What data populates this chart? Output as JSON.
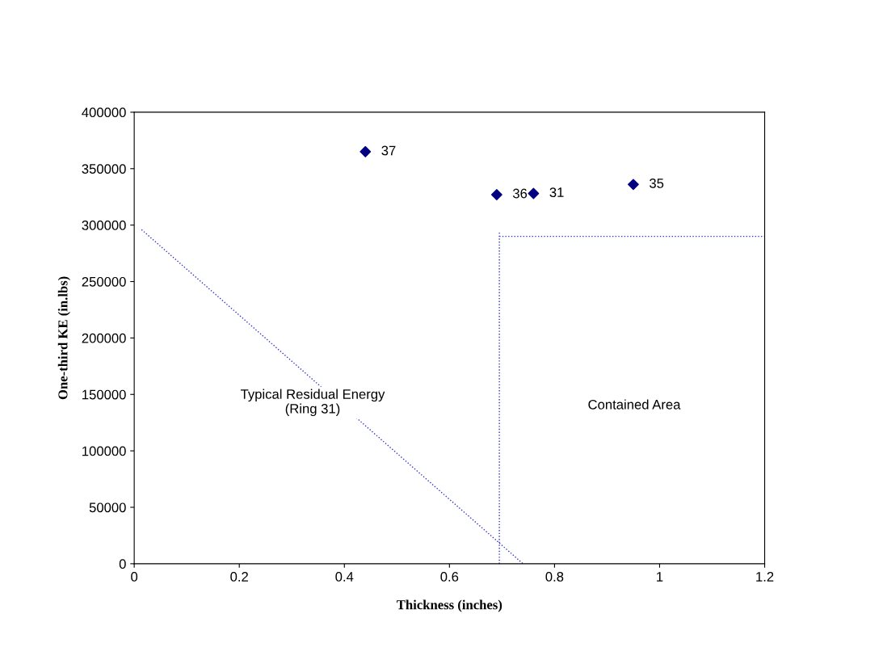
{
  "chart_data": {
    "type": "scatter",
    "xlabel": "Thickness (inches)",
    "ylabel": "One-third KE (in.lbs)",
    "xlim": [
      0,
      1.2
    ],
    "xticks": [
      0,
      0.2,
      0.4,
      0.6,
      0.8,
      1,
      1.2
    ],
    "ylim": [
      0,
      400000
    ],
    "yticks": [
      0,
      50000,
      100000,
      150000,
      200000,
      250000,
      300000,
      350000,
      400000
    ],
    "grid": false,
    "legend": false,
    "marker": "diamond",
    "series": [
      {
        "color": "#000080",
        "x": [
          0.44,
          0.69,
          0.76,
          0.95
        ],
        "values": [
          365000,
          327000,
          328000,
          336000
        ]
      },
      {
        "type": "line",
        "color": "#3333cc",
        "line_style": "dotted",
        "marker": "none",
        "x": [
          0.014,
          0.74
        ],
        "values": [
          296000,
          0
        ]
      },
      {
        "type": "line",
        "color": "#3333cc",
        "line_style": "dotted",
        "marker": "none",
        "x": [
          0.695,
          0.695
        ],
        "values": [
          0,
          294000
        ]
      },
      {
        "type": "line",
        "color": "#3333cc",
        "line_style": "dotted",
        "marker": "none",
        "x": [
          0.695,
          1.2
        ],
        "values": [
          290000,
          290000
        ]
      }
    ],
    "annotations": [
      {
        "text": "37",
        "x": 0.44,
        "y": 365000
      },
      {
        "text": "36",
        "x": 0.69,
        "y": 327000
      },
      {
        "text": "31",
        "x": 0.76,
        "y": 328000
      },
      {
        "text": "35",
        "x": 0.95,
        "y": 336000
      },
      "Typical Residual Energy\n(Ring 31)",
      "Contained Area"
    ]
  }
}
